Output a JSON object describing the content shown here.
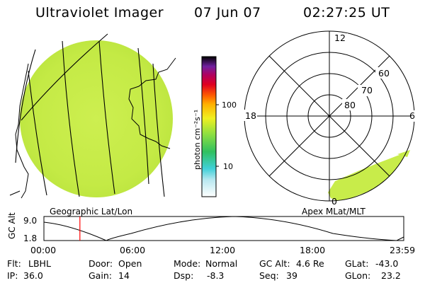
{
  "header": {
    "instrument": "Ultraviolet Imager",
    "date": "07 Jun 07",
    "time": "02:27:25 UT"
  },
  "geo_panel": {
    "label": "Geographic Lat/Lon"
  },
  "colorbar": {
    "unit_label": "photon cm⁻²s⁻¹",
    "tick_labels": [
      "100",
      "10"
    ]
  },
  "polar_panel": {
    "label": "Apex MLat/MLT",
    "mlt_labels": {
      "top": "12",
      "left": "18",
      "right": "6",
      "bottom": "0"
    },
    "mlat_labels": [
      "60",
      "70",
      "80"
    ]
  },
  "altitude_strip": {
    "axis_label": "GC Alt",
    "y_ticks": [
      "9.0",
      "1.8"
    ],
    "x_ticks": [
      "00:00",
      "06:00",
      "12:00",
      "18:00",
      "23:59"
    ],
    "current_time_fraction": 0.1
  },
  "footer": {
    "row1": [
      {
        "key": "Flt:",
        "value": "LBHL"
      },
      {
        "key": "Door:",
        "value": "Open"
      },
      {
        "key": "Mode:",
        "value": "Normal"
      },
      {
        "key": "GC Alt:",
        "value": "4.6 Re"
      },
      {
        "key": "GLat:",
        "value": "-43.0"
      }
    ],
    "row2": [
      {
        "key": "IP:",
        "value": "36.0"
      },
      {
        "key": "Gain:",
        "value": "14"
      },
      {
        "key": "Dsp:",
        "value": "-8.3"
      },
      {
        "key": "Seq:",
        "value": "39"
      },
      {
        "key": "GLon:",
        "value": "23.2"
      }
    ]
  },
  "colors": {
    "auroral_fill": "#c8ec4a",
    "line": "#000000",
    "time_marker": "#ff0000"
  }
}
